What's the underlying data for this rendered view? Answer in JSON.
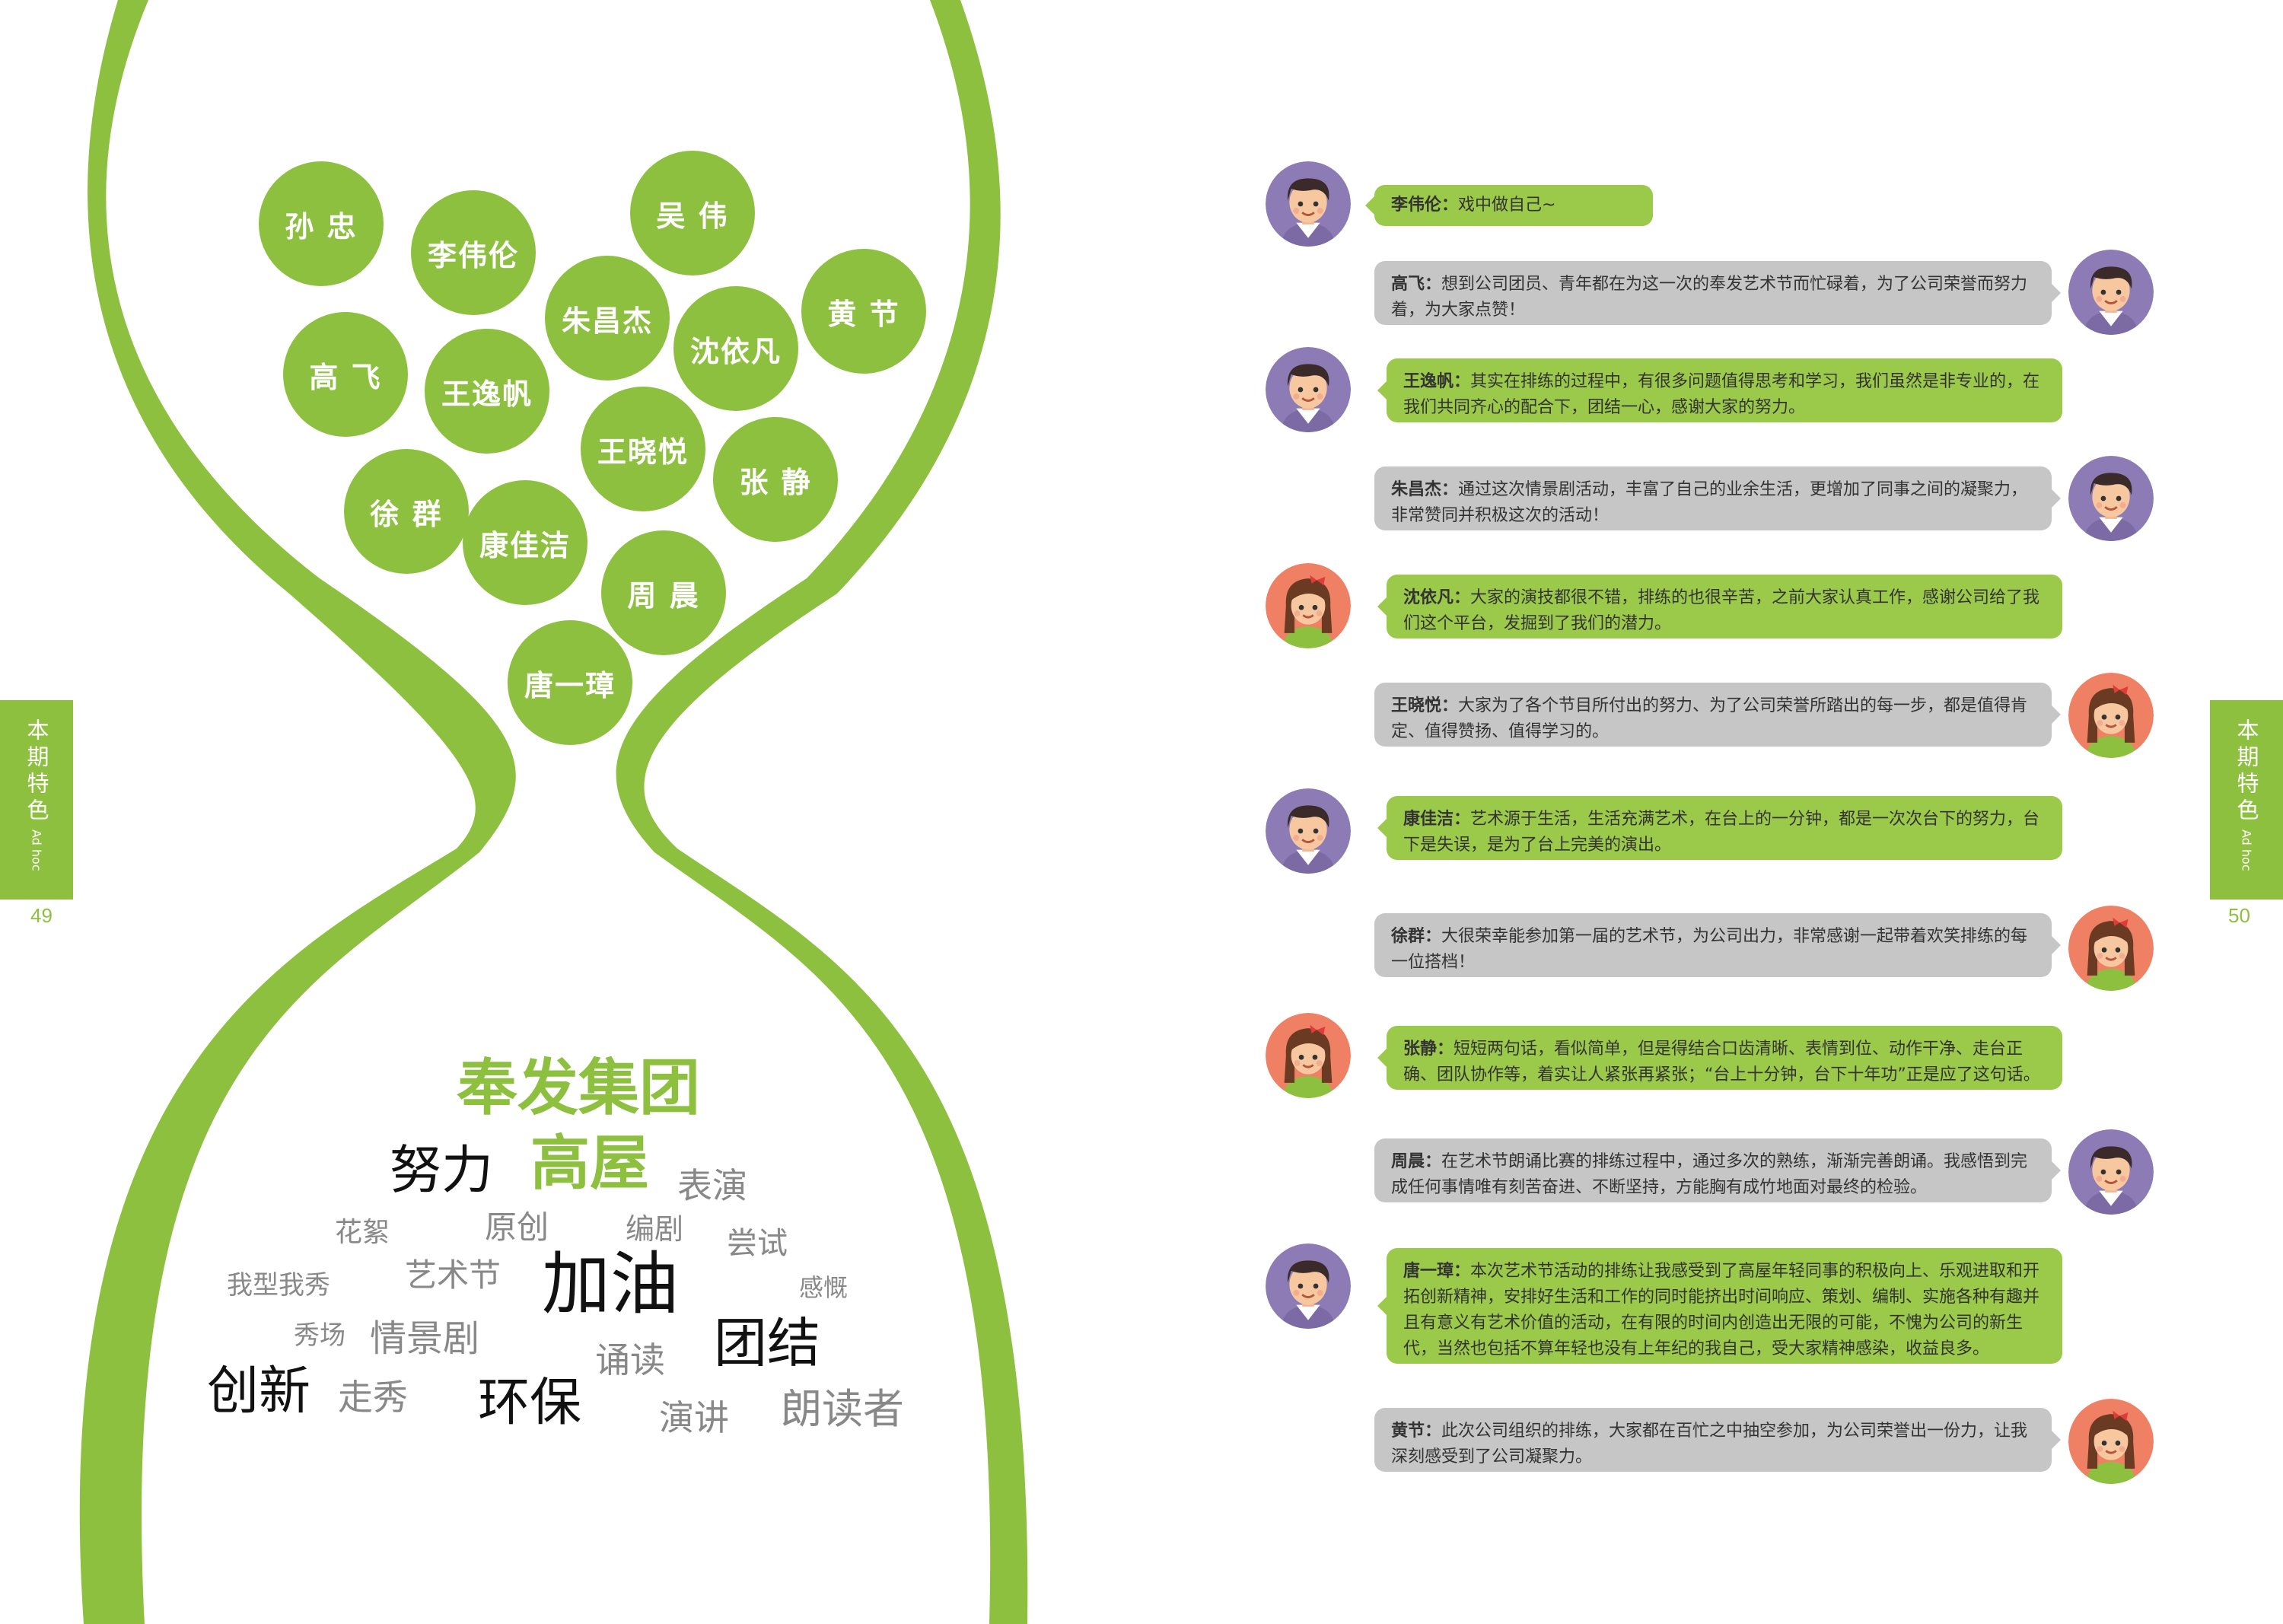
{
  "accent_color": "#8dc03f",
  "left_page": {
    "side_tab": {
      "label": "本期特色",
      "sub": "Ad hoc"
    },
    "page_number": "49",
    "names": [
      "孙 忠",
      "李伟伦",
      "吴 伟",
      "朱昌杰",
      "黄 节",
      "沈依凡",
      "高 飞",
      "王逸帆",
      "王晓悦",
      "张 静",
      "徐 群",
      "康佳洁",
      "周 晨",
      "唐一璋"
    ],
    "word_cloud": [
      "奉发集团",
      "努力",
      "高屋",
      "表演",
      "花絮",
      "原创",
      "编剧",
      "尝试",
      "我型我秀",
      "艺术节",
      "加油",
      "感慨",
      "秀场",
      "情景剧",
      "诵读",
      "团结",
      "创新",
      "走秀",
      "环保",
      "演讲",
      "朗读者"
    ]
  },
  "right_page": {
    "side_tab": {
      "label": "本期特色",
      "sub": "Ad hoc"
    },
    "page_number": "50",
    "comments": [
      {
        "name": "李伟伦：",
        "text": "戏中做自己~",
        "avatar": "boy-avatar-icon"
      },
      {
        "name": "高飞：",
        "text": "想到公司团员、青年都在为这一次的奉发艺术节而忙碌着，为了公司荣誉而努力着，为大家点赞！",
        "avatar": "boy-avatar-icon"
      },
      {
        "name": "王逸帆：",
        "text": "其实在排练的过程中，有很多问题值得思考和学习，我们虽然是非专业的，在我们共同齐心的配合下，团结一心，感谢大家的努力。",
        "avatar": "boy-avatar-icon"
      },
      {
        "name": "朱昌杰：",
        "text": "通过这次情景剧活动，丰富了自己的业余生活，更增加了同事之间的凝聚力，非常赞同并积极这次的活动！",
        "avatar": "boy-avatar-icon"
      },
      {
        "name": "沈依凡：",
        "text": "大家的演技都很不错，排练的也很辛苦，之前大家认真工作，感谢公司给了我们这个平台，发掘到了我们的潜力。",
        "avatar": "girl-avatar-icon"
      },
      {
        "name": "王晓悦：",
        "text": "大家为了各个节目所付出的努力、为了公司荣誉所踏出的每一步，都是值得肯定、值得赞扬、值得学习的。",
        "avatar": "girl-avatar-icon"
      },
      {
        "name": "康佳洁：",
        "text": "艺术源于生活，生活充满艺术，在台上的一分钟，都是一次次台下的努力，台下是失误，是为了台上完美的演出。",
        "avatar": "boy-avatar-icon"
      },
      {
        "name": "徐群：",
        "text": "大很荣幸能参加第一届的艺术节，为公司出力，非常感谢一起带着欢笑排练的每一位搭档！",
        "avatar": "girl-avatar-icon"
      },
      {
        "name": "张静：",
        "text": "短短两句话，看似简单，但是得结合口齿清晰、表情到位、动作干净、走台正确、团队协作等，着实让人紧张再紧张；“台上十分钟，台下十年功”正是应了这句话。",
        "avatar": "girl-avatar-icon"
      },
      {
        "name": "周晨：",
        "text": "在艺术节朗诵比赛的排练过程中，通过多次的熟练，渐渐完善朗诵。我感悟到完成任何事情唯有刻苦奋进、不断坚持，方能胸有成竹地面对最终的检验。",
        "avatar": "boy-avatar-icon"
      },
      {
        "name": "唐一璋：",
        "text": "本次艺术节活动的排练让我感受到了高屋年轻同事的积极向上、乐观进取和开拓创新精神，安排好生活和工作的同时能挤出时间响应、策划、编制、实施各种有趣并且有意义有艺术价值的活动，在有限的时间内创造出无限的可能，不愧为公司的新生代，当然也包括不算年轻也没有上年纪的我自己，受大家精神感染，收益良多。",
        "avatar": "boy-avatar-icon"
      },
      {
        "name": "黄节：",
        "text": "此次公司组织的排练，大家都在百忙之中抽空参加，为公司荣誉出一份力，让我深刻感受到了公司凝聚力。",
        "avatar": "girl-avatar-icon"
      }
    ]
  }
}
